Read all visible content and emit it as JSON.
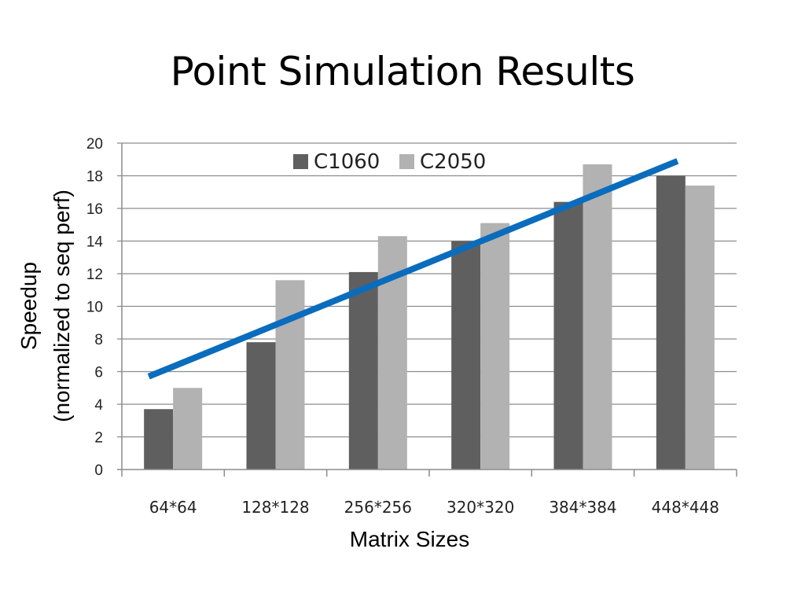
{
  "slide": {
    "title": "Point Simulation Results"
  },
  "chart_data": {
    "type": "bar",
    "title": "Point Simulation Results",
    "xlabel": "Matrix Sizes",
    "ylabel_lines": [
      "Speedup",
      "(normalized to seq perf)"
    ],
    "categories": [
      "64*64",
      "128*128",
      "256*256",
      "320*320",
      "384*384",
      "448*448"
    ],
    "series": [
      {
        "name": "C1060",
        "color": "#5f5f5f",
        "values": [
          3.7,
          7.8,
          12.1,
          14.0,
          16.4,
          18.0
        ]
      },
      {
        "name": "C2050",
        "color": "#b2b2b2",
        "values": [
          5.0,
          11.6,
          14.3,
          15.1,
          18.7,
          17.4
        ]
      }
    ],
    "trend_line": {
      "color": "#0a6cbd",
      "from": {
        "category": "64*64",
        "y": 5.7
      },
      "to": {
        "category": "448*448",
        "y": 18.9
      }
    },
    "ylim": [
      0,
      20
    ],
    "yticks": [
      0,
      2,
      4,
      6,
      8,
      10,
      12,
      14,
      16,
      18,
      20
    ],
    "grid": true,
    "legend_position": "top-center"
  }
}
